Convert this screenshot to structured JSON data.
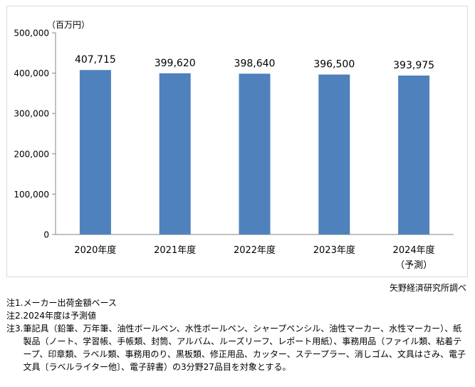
{
  "chart_data": {
    "type": "bar",
    "unit_label": "（百万円）",
    "categories": [
      "2020年度",
      "2021年度",
      "2022年度",
      "2023年度",
      "2024年度"
    ],
    "category_sublabels": [
      "",
      "",
      "",
      "",
      "（予測）"
    ],
    "values": [
      407715,
      399620,
      398640,
      396500,
      393975
    ],
    "data_labels": [
      "407,715",
      "399,620",
      "398,640",
      "396,500",
      "393,975"
    ],
    "ylim": [
      0,
      500000
    ],
    "yticks": [
      0,
      100000,
      200000,
      300000,
      400000,
      500000
    ],
    "ytick_labels": [
      "0",
      "100,000",
      "200,000",
      "300,000",
      "400,000",
      "500,000"
    ],
    "bar_color": "#4f81bd",
    "grid": false
  },
  "source": "矢野経済研究所調べ",
  "notes": [
    {
      "label": "注1.",
      "text": "メーカー出荷金額ベース"
    },
    {
      "label": "注2.",
      "text": "2024年度は予測値"
    },
    {
      "label": "注3.",
      "text": "筆記具（鉛筆、万年筆、油性ボールペン、水性ボールペン、シャープペンシル、油性マーカー、水性マーカー）、紙製品（ノート、学習帳、手帳類、封筒、アルバム、ルーズリーフ、レポート用紙）、事務用品（ファイル類、粘着テープ、印章類、ラベル類、事務用のり、黒板類、修正用品、カッター、ステープラー、消しゴム、文具はさみ、電子文具〔ラベルライター他〕、電子辞書）の3分野27品目を対象とする。"
    }
  ]
}
